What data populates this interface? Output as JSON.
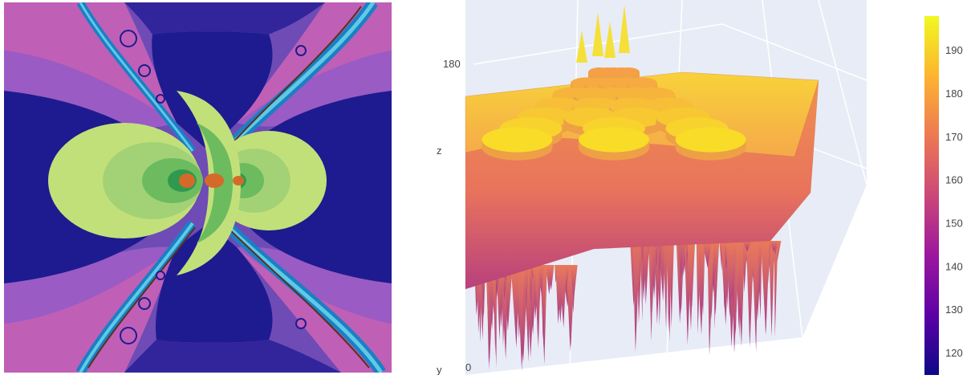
{
  "fractal": {
    "colors": {
      "navy": "#1d1b8f",
      "indigo": "#32259b",
      "purple": "#6e4bb5",
      "violet": "#9a5bc4",
      "magenta": "#c05fb6",
      "cyan": "#5fc9e6",
      "blue": "#1b7fc4",
      "lime": "#c2e07a",
      "lightgreen": "#a3d276",
      "green": "#6dbb5f",
      "darkgreen": "#2f9a4e",
      "orange": "#d46a2a",
      "brown": "#5a3020"
    }
  },
  "chart_data": {
    "type": "surface3d",
    "axes": {
      "z_tick_labels": [
        "180"
      ],
      "z_label": "z",
      "y_label": "y",
      "y_tick_labels": [
        "0"
      ]
    },
    "colorscale": [
      "#0d0887",
      "#5c01a6",
      "#9c179e",
      "#cc4778",
      "#ed7953",
      "#fdb42f",
      "#f0f921"
    ],
    "colorbar": {
      "ticks": [
        120,
        130,
        140,
        150,
        160,
        170,
        180,
        190
      ],
      "range": [
        115,
        198
      ]
    },
    "terraces": [
      {
        "level": 195,
        "count": 3
      },
      {
        "level": 190,
        "count": 3
      },
      {
        "level": 185,
        "count": 4
      },
      {
        "level": 180,
        "count": 4
      },
      {
        "level": 175,
        "count": 5
      },
      {
        "level": 170,
        "count": 5
      },
      {
        "level": 165,
        "count": 5
      }
    ]
  }
}
